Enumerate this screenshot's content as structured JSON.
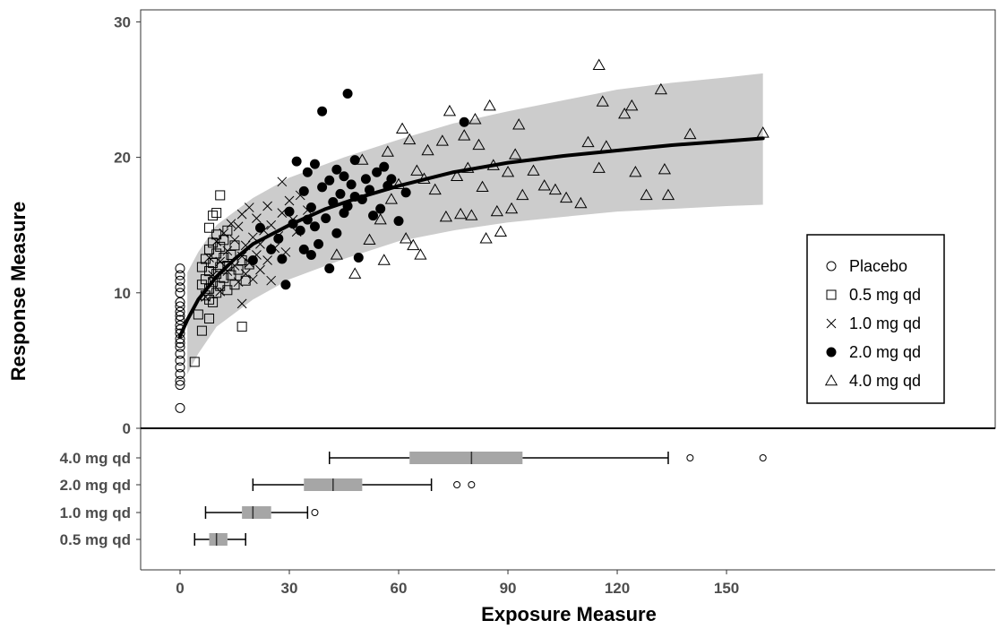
{
  "chart_data": [
    {
      "type": "scatter",
      "xlabel": "",
      "ylabel": "Response Measure",
      "xlim": [
        -7,
        165
      ],
      "ylim": [
        0,
        31
      ],
      "x_ticks": [
        0,
        30,
        60,
        90,
        120,
        150
      ],
      "y_ticks": [
        0,
        10,
        20,
        30
      ],
      "grid": false,
      "legend_position": "right",
      "band": {
        "x": [
          2,
          5,
          10,
          20,
          30,
          45,
          60,
          75,
          90,
          105,
          120,
          135,
          150,
          160
        ],
        "lower": [
          4.0,
          5.5,
          7.5,
          9.5,
          11.0,
          12.5,
          13.8,
          14.6,
          15.2,
          15.6,
          16.0,
          16.2,
          16.4,
          16.5
        ],
        "upper": [
          11.5,
          13.0,
          15.0,
          17.0,
          18.5,
          20.0,
          21.3,
          22.5,
          23.4,
          24.2,
          25.0,
          25.5,
          25.9,
          26.2
        ],
        "color": "#cccccc"
      },
      "median_line": {
        "x": [
          0,
          2,
          5,
          10,
          15,
          20,
          30,
          40,
          50,
          60,
          75,
          90,
          105,
          120,
          135,
          150,
          160
        ],
        "y": [
          6.8,
          8.0,
          9.5,
          11.2,
          12.5,
          13.6,
          15.0,
          16.2,
          17.1,
          17.9,
          18.9,
          19.6,
          20.1,
          20.5,
          20.9,
          21.2,
          21.4
        ],
        "color": "#000000"
      },
      "series": [
        {
          "name": "Placebo",
          "marker": "circle-open",
          "points": [
            [
              0,
              1.5
            ],
            [
              0,
              3.2
            ],
            [
              0,
              3.5
            ],
            [
              0,
              4.0
            ],
            [
              0,
              4.5
            ],
            [
              0,
              5.0
            ],
            [
              0,
              5.5
            ],
            [
              0,
              6.0
            ],
            [
              0,
              6.3
            ],
            [
              0,
              6.6
            ],
            [
              0,
              7.0
            ],
            [
              0,
              7.3
            ],
            [
              0,
              7.6
            ],
            [
              0,
              8.0
            ],
            [
              0,
              8.3
            ],
            [
              0,
              8.6
            ],
            [
              0,
              9.0
            ],
            [
              0,
              9.3
            ],
            [
              0,
              10.0
            ],
            [
              0,
              10.4
            ],
            [
              0,
              10.9
            ],
            [
              0,
              11.3
            ],
            [
              0,
              11.8
            ]
          ]
        },
        {
          "name": "0.5 mg qd",
          "marker": "square-open",
          "points": [
            [
              4,
              4.9
            ],
            [
              5,
              8.4
            ],
            [
              6,
              7.2
            ],
            [
              6,
              10.6
            ],
            [
              6,
              11.9
            ],
            [
              7,
              9.8
            ],
            [
              7,
              11.0
            ],
            [
              7,
              12.5
            ],
            [
              8,
              8.1
            ],
            [
              8,
              9.5
            ],
            [
              8,
              10.3
            ],
            [
              8,
              11.6
            ],
            [
              8,
              13.2
            ],
            [
              8,
              14.8
            ],
            [
              9,
              9.3
            ],
            [
              9,
              10.8
            ],
            [
              9,
              12.2
            ],
            [
              9,
              13.7
            ],
            [
              9,
              15.7
            ],
            [
              10,
              10.0
            ],
            [
              10,
              11.4
            ],
            [
              10,
              12.9
            ],
            [
              10,
              14.3
            ],
            [
              10,
              15.9
            ],
            [
              11,
              10.5
            ],
            [
              11,
              11.9
            ],
            [
              11,
              13.4
            ],
            [
              11,
              17.2
            ],
            [
              12,
              11.1
            ],
            [
              12,
              12.6
            ],
            [
              12,
              13.9
            ],
            [
              13,
              10.2
            ],
            [
              13,
              12.0
            ],
            [
              13,
              14.6
            ],
            [
              14,
              11.3
            ],
            [
              14,
              12.8
            ],
            [
              15,
              10.6
            ],
            [
              15,
              13.5
            ],
            [
              16,
              11.7
            ],
            [
              17,
              7.5
            ],
            [
              17,
              12.4
            ],
            [
              18,
              10.9
            ],
            [
              19,
              12.1
            ]
          ]
        },
        {
          "name": "1.0 mg qd",
          "marker": "x",
          "points": [
            [
              7,
              9.7
            ],
            [
              8,
              12.6
            ],
            [
              9,
              11.3
            ],
            [
              10,
              13.8
            ],
            [
              11,
              10.1
            ],
            [
              11,
              12.3
            ],
            [
              12,
              14.4
            ],
            [
              13,
              11.6
            ],
            [
              13,
              13.1
            ],
            [
              14,
              15.1
            ],
            [
              15,
              12.0
            ],
            [
              15,
              13.9
            ],
            [
              16,
              10.8
            ],
            [
              16,
              14.9
            ],
            [
              17,
              9.2
            ],
            [
              17,
              12.7
            ],
            [
              17,
              15.8
            ],
            [
              18,
              11.4
            ],
            [
              18,
              13.5
            ],
            [
              19,
              12.2
            ],
            [
              19,
              16.3
            ],
            [
              20,
              11.0
            ],
            [
              20,
              14.1
            ],
            [
              21,
              12.8
            ],
            [
              21,
              15.5
            ],
            [
              22,
              11.7
            ],
            [
              22,
              13.6
            ],
            [
              23,
              14.6
            ],
            [
              24,
              12.4
            ],
            [
              24,
              16.4
            ],
            [
              25,
              10.9
            ],
            [
              25,
              15.0
            ],
            [
              26,
              13.3
            ],
            [
              27,
              14.2
            ],
            [
              28,
              15.9
            ],
            [
              28,
              18.2
            ],
            [
              29,
              13.0
            ],
            [
              30,
              16.8
            ],
            [
              31,
              15.4
            ],
            [
              32,
              14.5
            ],
            [
              33,
              17.2
            ],
            [
              35,
              16.1
            ]
          ]
        },
        {
          "name": "2.0 mg qd",
          "marker": "circle-filled",
          "points": [
            [
              20,
              12.4
            ],
            [
              22,
              14.8
            ],
            [
              25,
              13.2
            ],
            [
              27,
              14.0
            ],
            [
              28,
              12.5
            ],
            [
              29,
              10.6
            ],
            [
              30,
              16.0
            ],
            [
              31,
              15.1
            ],
            [
              32,
              19.7
            ],
            [
              33,
              14.6
            ],
            [
              34,
              13.2
            ],
            [
              34,
              17.5
            ],
            [
              35,
              15.4
            ],
            [
              35,
              18.9
            ],
            [
              36,
              12.8
            ],
            [
              36,
              16.3
            ],
            [
              37,
              14.9
            ],
            [
              37,
              19.5
            ],
            [
              38,
              13.6
            ],
            [
              39,
              17.8
            ],
            [
              39,
              23.4
            ],
            [
              40,
              15.5
            ],
            [
              41,
              11.8
            ],
            [
              41,
              18.3
            ],
            [
              42,
              16.7
            ],
            [
              43,
              14.4
            ],
            [
              43,
              19.1
            ],
            [
              44,
              17.3
            ],
            [
              45,
              15.9
            ],
            [
              45,
              18.6
            ],
            [
              46,
              16.4
            ],
            [
              46,
              24.7
            ],
            [
              47,
              18.0
            ],
            [
              48,
              17.1
            ],
            [
              48,
              19.8
            ],
            [
              49,
              12.6
            ],
            [
              50,
              16.9
            ],
            [
              51,
              18.4
            ],
            [
              52,
              17.6
            ],
            [
              53,
              15.7
            ],
            [
              54,
              18.9
            ],
            [
              55,
              16.2
            ],
            [
              56,
              19.3
            ],
            [
              57,
              17.9
            ],
            [
              58,
              18.4
            ],
            [
              60,
              15.3
            ],
            [
              62,
              17.4
            ],
            [
              78,
              22.6
            ]
          ]
        },
        {
          "name": "4.0 mg qd",
          "marker": "triangle-open",
          "points": [
            [
              43,
              12.8
            ],
            [
              48,
              11.4
            ],
            [
              50,
              19.8
            ],
            [
              52,
              13.9
            ],
            [
              55,
              15.4
            ],
            [
              56,
              12.4
            ],
            [
              57,
              20.4
            ],
            [
              58,
              16.9
            ],
            [
              60,
              18.0
            ],
            [
              61,
              22.1
            ],
            [
              62,
              14.0
            ],
            [
              63,
              21.3
            ],
            [
              64,
              13.5
            ],
            [
              65,
              19.0
            ],
            [
              66,
              12.8
            ],
            [
              67,
              18.4
            ],
            [
              68,
              20.5
            ],
            [
              70,
              17.6
            ],
            [
              72,
              21.2
            ],
            [
              73,
              15.6
            ],
            [
              74,
              23.4
            ],
            [
              76,
              18.6
            ],
            [
              77,
              15.8
            ],
            [
              78,
              21.6
            ],
            [
              79,
              19.2
            ],
            [
              80,
              15.7
            ],
            [
              81,
              22.8
            ],
            [
              82,
              20.9
            ],
            [
              83,
              17.8
            ],
            [
              84,
              14.0
            ],
            [
              85,
              23.8
            ],
            [
              86,
              19.4
            ],
            [
              87,
              16.0
            ],
            [
              88,
              14.5
            ],
            [
              90,
              18.9
            ],
            [
              91,
              16.2
            ],
            [
              92,
              20.2
            ],
            [
              93,
              22.4
            ],
            [
              94,
              17.2
            ],
            [
              97,
              19.0
            ],
            [
              100,
              17.9
            ],
            [
              103,
              17.6
            ],
            [
              106,
              17.0
            ],
            [
              110,
              16.6
            ],
            [
              112,
              21.1
            ],
            [
              115,
              26.8
            ],
            [
              115,
              19.2
            ],
            [
              116,
              24.1
            ],
            [
              117,
              20.8
            ],
            [
              122,
              23.2
            ],
            [
              124,
              23.8
            ],
            [
              125,
              18.9
            ],
            [
              128,
              17.2
            ],
            [
              132,
              25.0
            ],
            [
              133,
              19.1
            ],
            [
              134,
              17.2
            ],
            [
              140,
              21.7
            ],
            [
              160,
              21.8
            ]
          ]
        }
      ],
      "legend": [
        "Placebo",
        "0.5 mg qd",
        "1.0 mg qd",
        "2.0 mg qd",
        "4.0 mg qd"
      ]
    },
    {
      "type": "boxplot",
      "orientation": "horizontal",
      "xlabel": "Exposure Measure",
      "ylabel": "",
      "xlim": [
        -7,
        165
      ],
      "x_ticks": [
        0,
        30,
        60,
        90,
        120,
        150
      ],
      "categories": [
        "4.0 mg qd",
        "2.0 mg qd",
        "1.0 mg qd",
        "0.5 mg qd"
      ],
      "box_color": "#a6a6a6",
      "boxes": [
        {
          "label": "4.0 mg qd",
          "whisker_low": 41,
          "q1": 63,
          "median": 80,
          "q3": 94,
          "whisker_high": 134,
          "outliers": [
            140,
            160
          ]
        },
        {
          "label": "2.0 mg qd",
          "whisker_low": 20,
          "q1": 34,
          "median": 42,
          "q3": 50,
          "whisker_high": 69,
          "outliers": [
            76,
            80
          ]
        },
        {
          "label": "1.0 mg qd",
          "whisker_low": 7,
          "q1": 17,
          "median": 20,
          "q3": 25,
          "whisker_high": 35,
          "outliers": [
            37
          ]
        },
        {
          "label": "0.5 mg qd",
          "whisker_low": 4,
          "q1": 8,
          "median": 10,
          "q3": 13,
          "whisker_high": 18,
          "outliers": []
        }
      ]
    }
  ]
}
